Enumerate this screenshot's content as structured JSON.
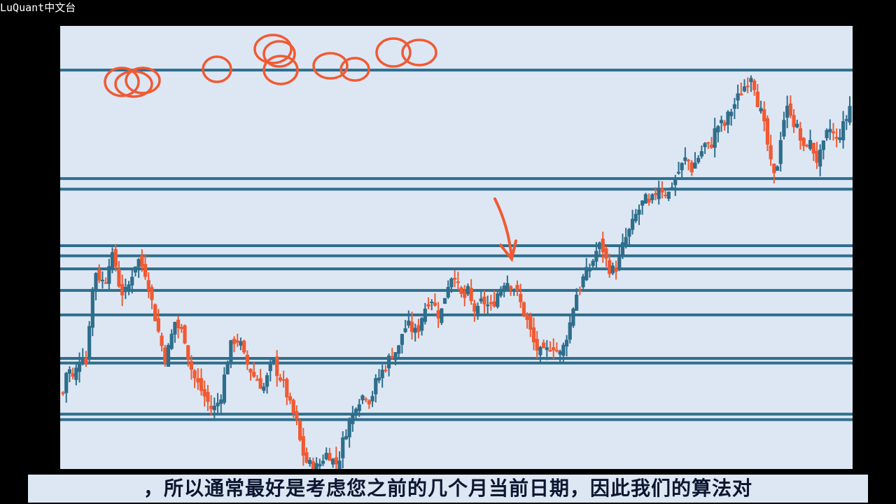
{
  "brand": {
    "label": "LuQuant中文台"
  },
  "subtitle": {
    "text": "，所以通常最好是考虑您之前的几个月当前日期，因此我们的算法对"
  },
  "colors": {
    "up": "#2e6e8c",
    "down": "#f05a33",
    "level": "#2e6e8c",
    "annotation": "#f05a33",
    "panel": "#dde7f4"
  },
  "chart_data": {
    "type": "candlestick",
    "title": "",
    "xlabel": "",
    "ylabel": "",
    "grid": false,
    "ylim": [
      0,
      100
    ],
    "support_resistance_levels": [
      94.5,
      68.8,
      66.3,
      52.9,
      50.5,
      47.4,
      42.3,
      36.5,
      26.2,
      25.1,
      13.0,
      11.7
    ],
    "close_path": [
      [
        0,
        18
      ],
      [
        4,
        25
      ],
      [
        8,
        21
      ],
      [
        12,
        24
      ],
      [
        16,
        28
      ],
      [
        20,
        25
      ],
      [
        24,
        40
      ],
      [
        28,
        47
      ],
      [
        32,
        45
      ],
      [
        36,
        44
      ],
      [
        40,
        50
      ],
      [
        44,
        50
      ],
      [
        48,
        44
      ],
      [
        52,
        41
      ],
      [
        56,
        43
      ],
      [
        60,
        47
      ],
      [
        64,
        50
      ],
      [
        68,
        48
      ],
      [
        72,
        46
      ],
      [
        76,
        40
      ],
      [
        80,
        35
      ],
      [
        84,
        30
      ],
      [
        88,
        26
      ],
      [
        92,
        30
      ],
      [
        96,
        35
      ],
      [
        100,
        33
      ],
      [
        104,
        32
      ],
      [
        108,
        26
      ],
      [
        112,
        22
      ],
      [
        116,
        20
      ],
      [
        120,
        18
      ],
      [
        124,
        16
      ],
      [
        128,
        14
      ],
      [
        132,
        15
      ],
      [
        136,
        18
      ],
      [
        140,
        24
      ],
      [
        144,
        29
      ],
      [
        148,
        31
      ],
      [
        152,
        30
      ],
      [
        156,
        26
      ],
      [
        160,
        24
      ],
      [
        164,
        22
      ],
      [
        168,
        21
      ],
      [
        172,
        19
      ],
      [
        176,
        22
      ],
      [
        180,
        26
      ],
      [
        184,
        23
      ],
      [
        188,
        21
      ],
      [
        192,
        18
      ],
      [
        196,
        14
      ],
      [
        200,
        12
      ],
      [
        204,
        6
      ],
      [
        208,
        2
      ],
      [
        212,
        1
      ],
      [
        216,
        0
      ],
      [
        220,
        1
      ],
      [
        224,
        3
      ],
      [
        228,
        4
      ],
      [
        232,
        2
      ],
      [
        236,
        1
      ],
      [
        240,
        6
      ],
      [
        244,
        10
      ],
      [
        248,
        12
      ],
      [
        252,
        16
      ],
      [
        256,
        17
      ],
      [
        260,
        18
      ],
      [
        264,
        16
      ],
      [
        268,
        20
      ],
      [
        272,
        22
      ],
      [
        276,
        24
      ],
      [
        280,
        26
      ],
      [
        284,
        28
      ],
      [
        288,
        28
      ],
      [
        292,
        33
      ],
      [
        296,
        34
      ],
      [
        300,
        33
      ],
      [
        304,
        32
      ],
      [
        308,
        36
      ],
      [
        312,
        39
      ],
      [
        316,
        41
      ],
      [
        320,
        38
      ],
      [
        324,
        36
      ],
      [
        328,
        41
      ],
      [
        332,
        45
      ],
      [
        336,
        47
      ],
      [
        340,
        42
      ],
      [
        344,
        40
      ],
      [
        348,
        42
      ],
      [
        352,
        38
      ],
      [
        356,
        37
      ],
      [
        360,
        40
      ],
      [
        364,
        39
      ],
      [
        368,
        38
      ],
      [
        372,
        41
      ],
      [
        376,
        43
      ],
      [
        380,
        45
      ],
      [
        384,
        44
      ],
      [
        388,
        43
      ],
      [
        392,
        40
      ],
      [
        396,
        37
      ],
      [
        400,
        34
      ],
      [
        404,
        30
      ],
      [
        408,
        28
      ],
      [
        412,
        27
      ],
      [
        416,
        28
      ],
      [
        420,
        30
      ],
      [
        424,
        28
      ],
      [
        428,
        27
      ],
      [
        432,
        31
      ],
      [
        436,
        35
      ],
      [
        440,
        41
      ],
      [
        444,
        43
      ],
      [
        448,
        46
      ],
      [
        452,
        47
      ],
      [
        456,
        50
      ],
      [
        460,
        53
      ],
      [
        464,
        52
      ],
      [
        468,
        48
      ],
      [
        472,
        47
      ],
      [
        476,
        48
      ],
      [
        480,
        52
      ],
      [
        484,
        55
      ],
      [
        488,
        57
      ],
      [
        492,
        60
      ],
      [
        496,
        62
      ],
      [
        500,
        64
      ],
      [
        504,
        62
      ],
      [
        508,
        65
      ],
      [
        512,
        67
      ],
      [
        516,
        66
      ],
      [
        520,
        65
      ],
      [
        524,
        68
      ],
      [
        528,
        70
      ],
      [
        532,
        72
      ],
      [
        536,
        74
      ],
      [
        540,
        71
      ],
      [
        544,
        73
      ],
      [
        548,
        75
      ],
      [
        552,
        77
      ],
      [
        556,
        76
      ],
      [
        560,
        80
      ],
      [
        564,
        82
      ],
      [
        568,
        81
      ],
      [
        572,
        84
      ],
      [
        576,
        86
      ],
      [
        580,
        88
      ],
      [
        584,
        90
      ],
      [
        588,
        92
      ],
      [
        592,
        94
      ],
      [
        596,
        88
      ],
      [
        600,
        84
      ],
      [
        604,
        79
      ],
      [
        608,
        72
      ],
      [
        612,
        68
      ],
      [
        616,
        78
      ],
      [
        620,
        84
      ],
      [
        624,
        86
      ],
      [
        628,
        82
      ],
      [
        632,
        80
      ],
      [
        636,
        75
      ],
      [
        640,
        78
      ],
      [
        644,
        76
      ],
      [
        648,
        73
      ],
      [
        652,
        75
      ],
      [
        656,
        79
      ],
      [
        660,
        81
      ],
      [
        664,
        77
      ],
      [
        668,
        80
      ],
      [
        672,
        82
      ],
      [
        676,
        86
      ]
    ]
  },
  "annotations": {
    "circles": [
      [
        88,
        80,
        24,
        20
      ],
      [
        105,
        83,
        26,
        18
      ],
      [
        118,
        78,
        24,
        18
      ],
      [
        224,
        62,
        20,
        18
      ],
      [
        304,
        33,
        26,
        20
      ],
      [
        313,
        40,
        22,
        18
      ],
      [
        315,
        63,
        24,
        20
      ],
      [
        386,
        57,
        24,
        18
      ],
      [
        421,
        62,
        20,
        16
      ],
      [
        476,
        38,
        24,
        20
      ],
      [
        513,
        38,
        24,
        18
      ]
    ],
    "arrow": {
      "from": [
        621,
        247
      ],
      "to": [
        645,
        333
      ]
    }
  }
}
